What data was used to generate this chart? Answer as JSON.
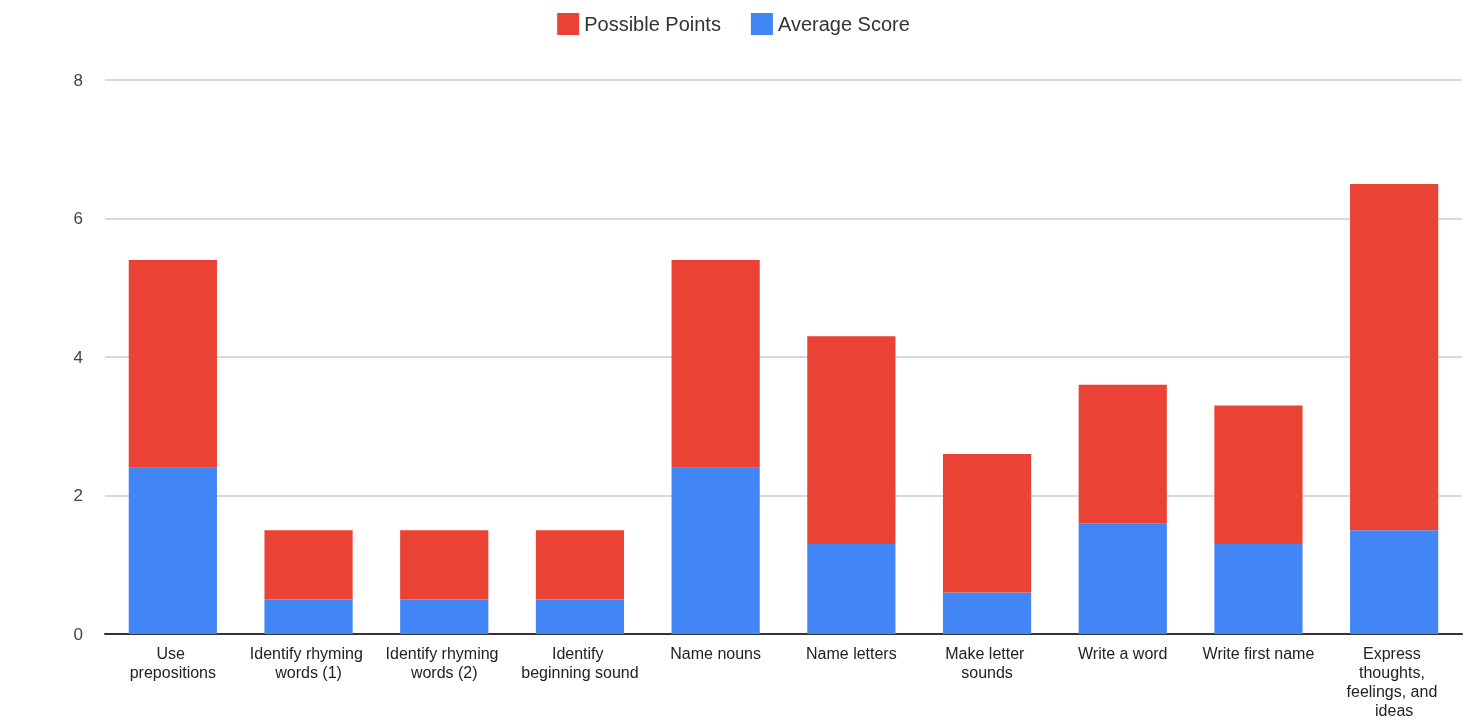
{
  "chart_data": {
    "type": "bar",
    "stacked": true,
    "categories": [
      "Use prepositions",
      "Identify rhyming words (1)",
      "Identify rhyming words (2)",
      "Identify beginning sound",
      "Name nouns",
      "Name letters",
      "Make letter sounds",
      "Write a word",
      "Write first name",
      "Express thoughts, feelings, and ideas"
    ],
    "series": [
      {
        "name": "Average Score",
        "color": "#4285f4",
        "values": [
          2.4,
          0.5,
          0.5,
          0.5,
          2.4,
          1.3,
          0.6,
          1.6,
          1.3,
          1.5
        ]
      },
      {
        "name": "Possible Points",
        "color": "#ea4335",
        "values": [
          3.0,
          1.0,
          1.0,
          1.0,
          3.0,
          3.0,
          2.0,
          2.0,
          2.0,
          5.0
        ]
      }
    ],
    "ylim": [
      0,
      8
    ],
    "yticks": [
      0,
      2,
      4,
      6,
      8
    ],
    "grid": "y",
    "legend": "top"
  }
}
